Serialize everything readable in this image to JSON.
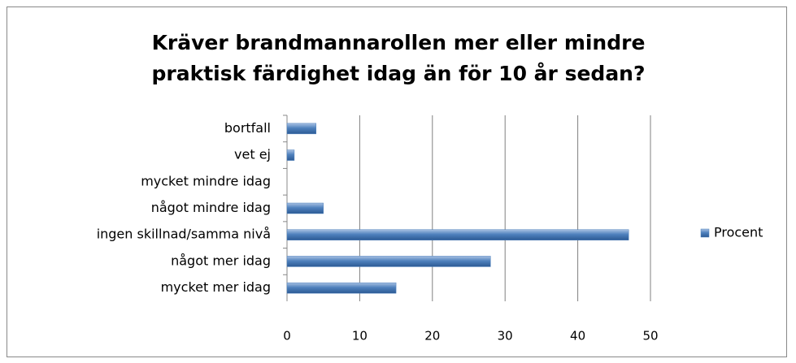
{
  "chart_data": {
    "type": "hbar",
    "title": "Kräver brandmannarollen mer eller mindre praktisk färdighet idag än för 10 år sedan?",
    "categories": [
      "bortfall",
      "vet ej",
      "mycket mindre idag",
      "något mindre idag",
      "ingen skillnad/samma nivå",
      "något mer idag",
      "mycket mer idag"
    ],
    "series": [
      {
        "name": "Procent",
        "color": "#4f81bd",
        "values": [
          4,
          1,
          0,
          5,
          47,
          28,
          15
        ]
      }
    ],
    "xlim": [
      0,
      50
    ],
    "xticks": [
      0,
      10,
      20,
      30,
      40,
      50
    ],
    "grid": true,
    "legend": "right"
  }
}
